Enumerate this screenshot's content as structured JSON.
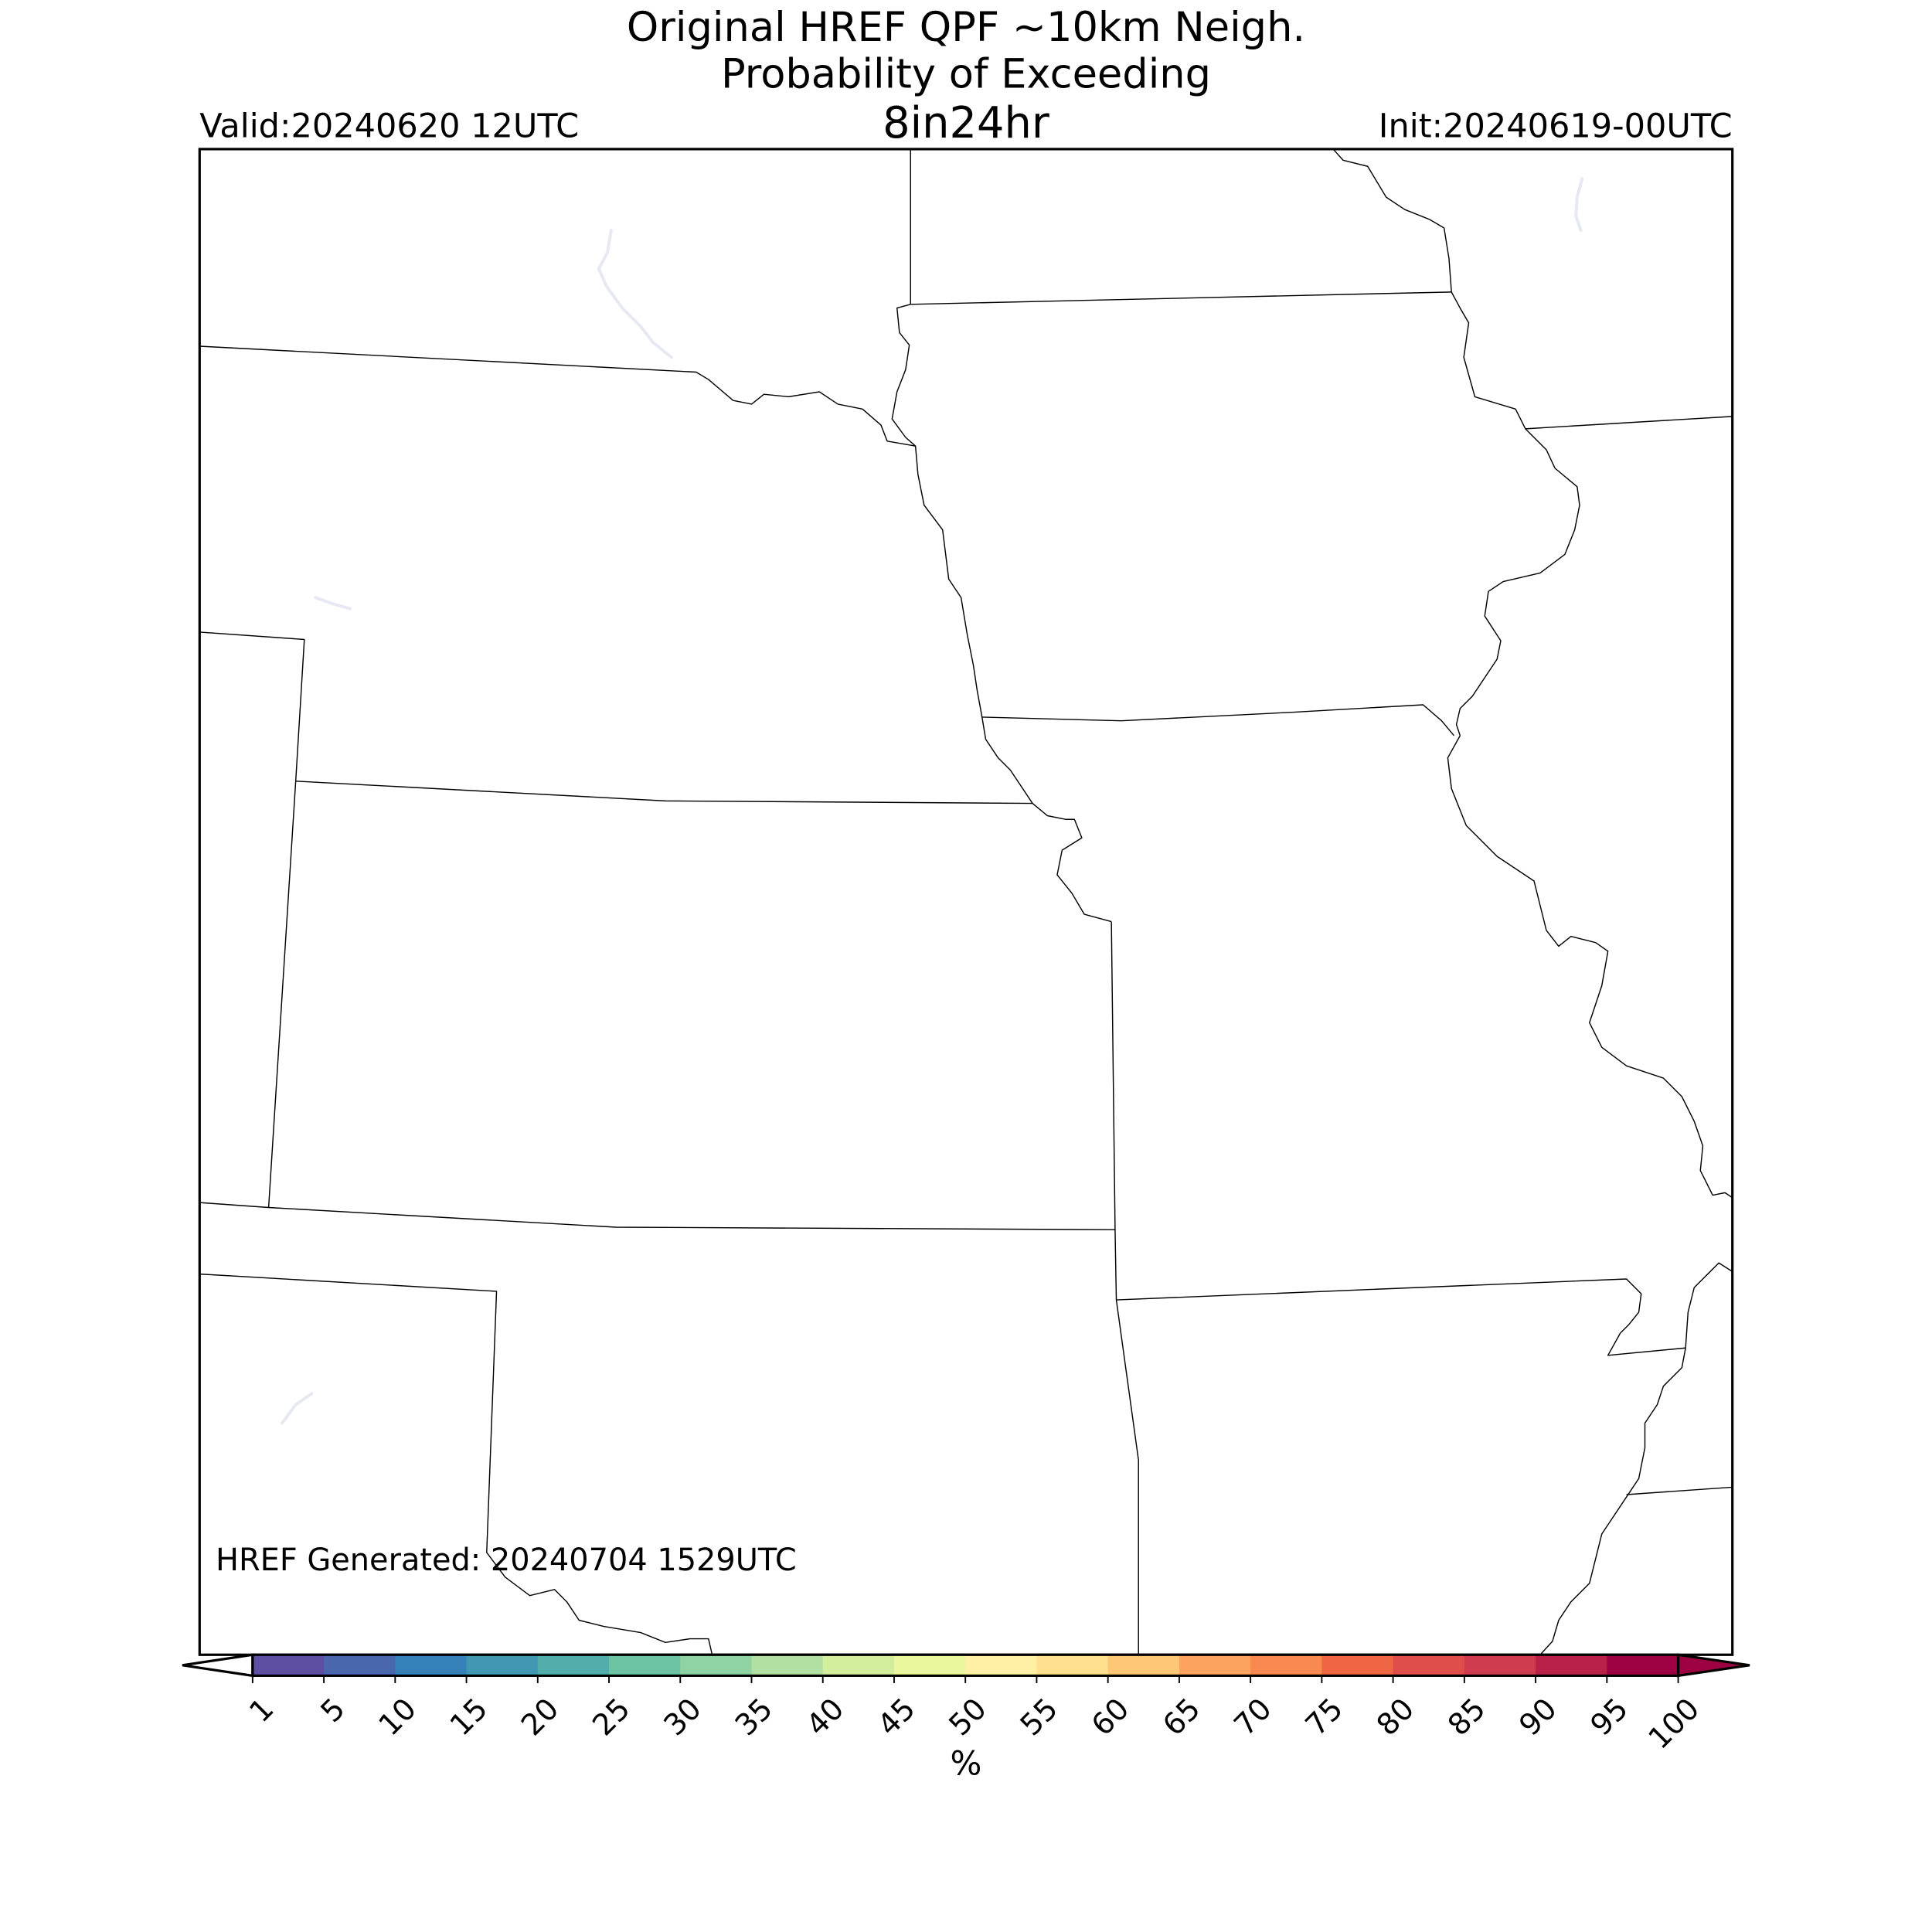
{
  "header": {
    "title_lines": [
      "Original HREF QPF ~10km Neigh.",
      "Probability of Exceeding",
      "8in24hr"
    ],
    "valid": "Valid:20240620 12UTC",
    "init": "Init:20240619-00UTC"
  },
  "footer": {
    "generated": "HREF Generated: 20240704 1529UTC"
  },
  "colorbar": {
    "ticks": [
      1,
      5,
      10,
      15,
      20,
      25,
      30,
      35,
      40,
      45,
      50,
      55,
      60,
      65,
      70,
      75,
      80,
      85,
      90,
      95,
      100
    ],
    "colors": [
      "#5e4fa2",
      "#4a66ad",
      "#3681ba",
      "#4098b2",
      "#52aeaa",
      "#6cc4a4",
      "#8fd3a4",
      "#b2e0a2",
      "#d2ed9c",
      "#eaf79e",
      "#fff0a6",
      "#fee08e",
      "#fdc776",
      "#fca35e",
      "#f88950",
      "#ef6645",
      "#df4e4b",
      "#cf3b4f",
      "#ba2148",
      "#9e0142"
    ],
    "under_color": "#ffffff",
    "over_color": "#9e0142",
    "label": "%"
  }
}
